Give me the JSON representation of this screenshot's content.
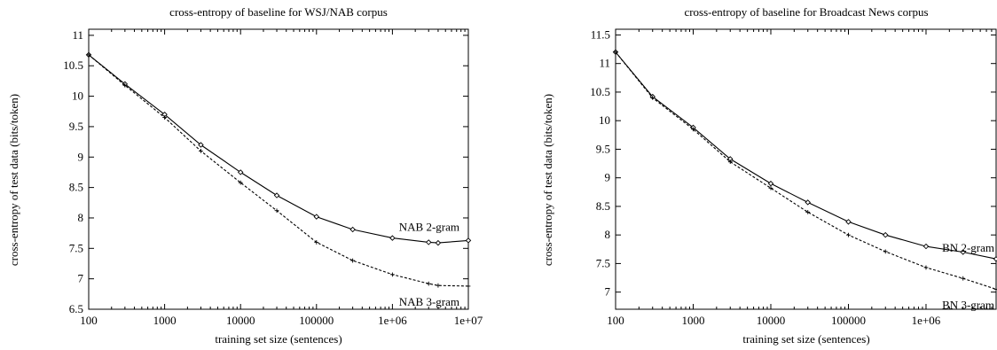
{
  "chart_data": [
    {
      "type": "line",
      "title": "cross-entropy of baseline for WSJ/NAB corpus",
      "xlabel": "training set size (sentences)",
      "ylabel": "cross-entropy of test data (bits/token)",
      "xscale": "log",
      "xlim": [
        100,
        10000000
      ],
      "ylim": [
        6.5,
        11.1
      ],
      "grid": false,
      "legend": "inline labels near line ends",
      "xticks": [
        "100",
        "1000",
        "10000",
        "100000",
        "1e+06",
        "1e+07"
      ],
      "yticks": [
        "6.5",
        "7",
        "7.5",
        "8",
        "8.5",
        "9",
        "9.5",
        "10",
        "10.5",
        "11"
      ],
      "series": [
        {
          "name": "NAB 2-gram",
          "style": "solid",
          "marker": "diamond",
          "x": [
            100,
            300,
            1000,
            3000,
            10000,
            30000,
            100000,
            300000,
            1000000,
            3000000,
            4000000,
            10000000
          ],
          "y": [
            10.68,
            10.2,
            9.7,
            9.2,
            8.75,
            8.37,
            8.02,
            7.81,
            7.67,
            7.6,
            7.59,
            7.63
          ]
        },
        {
          "name": "NAB 3-gram",
          "style": "dashed",
          "marker": "plus",
          "x": [
            100,
            300,
            1000,
            3000,
            10000,
            30000,
            100000,
            300000,
            1000000,
            3000000,
            4000000,
            10000000
          ],
          "y": [
            10.68,
            10.18,
            9.65,
            9.1,
            8.58,
            8.12,
            7.6,
            7.3,
            7.07,
            6.92,
            6.89,
            6.88
          ]
        }
      ]
    },
    {
      "type": "line",
      "title": "cross-entropy of baseline for Broadcast News corpus",
      "xlabel": "training set size (sentences)",
      "ylabel": "cross-entropy of test data (bits/token)",
      "xscale": "log",
      "xlim": [
        100,
        8000000
      ],
      "ylim": [
        6.7,
        11.6
      ],
      "grid": false,
      "legend": "inline labels near line ends",
      "xticks": [
        "100",
        "1000",
        "10000",
        "100000",
        "1e+06"
      ],
      "yticks": [
        "7",
        "7.5",
        "8",
        "8.5",
        "9",
        "9.5",
        "10",
        "10.5",
        "11",
        "11.5"
      ],
      "series": [
        {
          "name": "BN 2-gram",
          "style": "solid",
          "marker": "diamond",
          "x": [
            100,
            300,
            1000,
            3000,
            10000,
            30000,
            100000,
            300000,
            1000000,
            3000000,
            8000000
          ],
          "y": [
            11.2,
            10.42,
            9.88,
            9.33,
            8.9,
            8.57,
            8.23,
            8.0,
            7.8,
            7.7,
            7.58
          ]
        },
        {
          "name": "BN 3-gram",
          "style": "dashed",
          "marker": "plus",
          "x": [
            100,
            300,
            1000,
            3000,
            10000,
            30000,
            100000,
            300000,
            1000000,
            3000000,
            8000000
          ],
          "y": [
            11.2,
            10.4,
            9.85,
            9.28,
            8.82,
            8.4,
            8.0,
            7.71,
            7.43,
            7.24,
            7.05
          ]
        }
      ]
    }
  ]
}
